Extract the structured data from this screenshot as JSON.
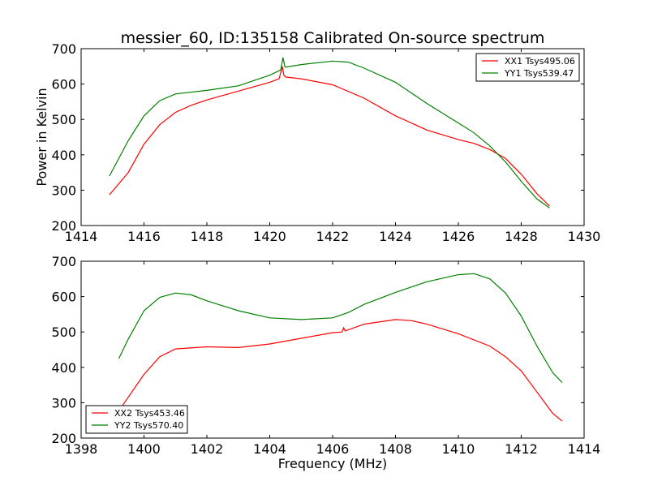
{
  "chart_data": [
    {
      "type": "line",
      "title": "messier_60, ID:135158 Calibrated On-source spectrum",
      "xlabel": "",
      "ylabel": "Power in Kelvin",
      "xlim": [
        1414,
        1430
      ],
      "ylim": [
        200,
        700
      ],
      "xticks": [
        1414,
        1416,
        1418,
        1420,
        1422,
        1424,
        1426,
        1428,
        1430
      ],
      "yticks": [
        200,
        300,
        400,
        500,
        600,
        700
      ],
      "legend": "top-right",
      "series": [
        {
          "name": "XX1 Tsys495.06",
          "color": "#ff0000",
          "x": [
            1414.9,
            1415.5,
            1416,
            1416.5,
            1417,
            1417.5,
            1418,
            1419,
            1420,
            1420.3,
            1420.4,
            1420.45,
            1420.5,
            1421,
            1422,
            1423,
            1424,
            1425,
            1426,
            1426.5,
            1427,
            1427.5,
            1428,
            1428.5,
            1428.9
          ],
          "y": [
            287,
            350,
            430,
            485,
            520,
            540,
            555,
            580,
            605,
            615,
            650,
            625,
            620,
            615,
            598,
            560,
            510,
            470,
            443,
            432,
            415,
            390,
            345,
            290,
            255
          ]
        },
        {
          "name": "YY1 Tsys539.47",
          "color": "#008000",
          "x": [
            1414.9,
            1415.5,
            1416,
            1416.5,
            1417,
            1418,
            1419,
            1420,
            1420.35,
            1420.42,
            1420.48,
            1420.5,
            1421,
            1422,
            1422.5,
            1423,
            1424,
            1425,
            1426,
            1426.5,
            1427,
            1427.5,
            1428,
            1428.5,
            1428.9
          ],
          "y": [
            340,
            440,
            510,
            553,
            572,
            582,
            595,
            625,
            640,
            675,
            650,
            648,
            655,
            665,
            662,
            645,
            605,
            545,
            490,
            462,
            425,
            380,
            325,
            275,
            250
          ]
        }
      ]
    },
    {
      "type": "line",
      "title": "",
      "xlabel": "Frequency (MHz)",
      "ylabel": "",
      "xlim": [
        1398,
        1414
      ],
      "ylim": [
        200,
        700
      ],
      "xticks": [
        1398,
        1400,
        1402,
        1404,
        1406,
        1408,
        1410,
        1412,
        1414
      ],
      "yticks": [
        200,
        300,
        400,
        500,
        600,
        700
      ],
      "legend": "bottom-left",
      "series": [
        {
          "name": "XX2 Tsys453.46",
          "color": "#ff0000",
          "x": [
            1399.3,
            1400,
            1400.5,
            1401,
            1402,
            1403,
            1404,
            1405,
            1406,
            1406.3,
            1406.35,
            1406.4,
            1407,
            1408,
            1408.5,
            1409,
            1410,
            1411,
            1411.5,
            1412,
            1412.5,
            1413,
            1413.3
          ],
          "y": [
            290,
            380,
            430,
            452,
            458,
            456,
            466,
            482,
            498,
            500,
            512,
            503,
            522,
            535,
            532,
            522,
            495,
            460,
            430,
            390,
            330,
            270,
            248
          ]
        },
        {
          "name": "YY2 Tsys570.40",
          "color": "#008000",
          "x": [
            1399.2,
            1399.5,
            1400,
            1400.5,
            1401,
            1401.5,
            1402,
            1403,
            1404,
            1405,
            1406,
            1406.5,
            1407,
            1408,
            1409,
            1410,
            1410.5,
            1411,
            1411.5,
            1412,
            1412.5,
            1413,
            1413.3
          ],
          "y": [
            425,
            480,
            560,
            598,
            610,
            605,
            588,
            560,
            540,
            535,
            540,
            555,
            578,
            612,
            642,
            662,
            665,
            650,
            610,
            545,
            460,
            385,
            357
          ]
        }
      ]
    }
  ]
}
